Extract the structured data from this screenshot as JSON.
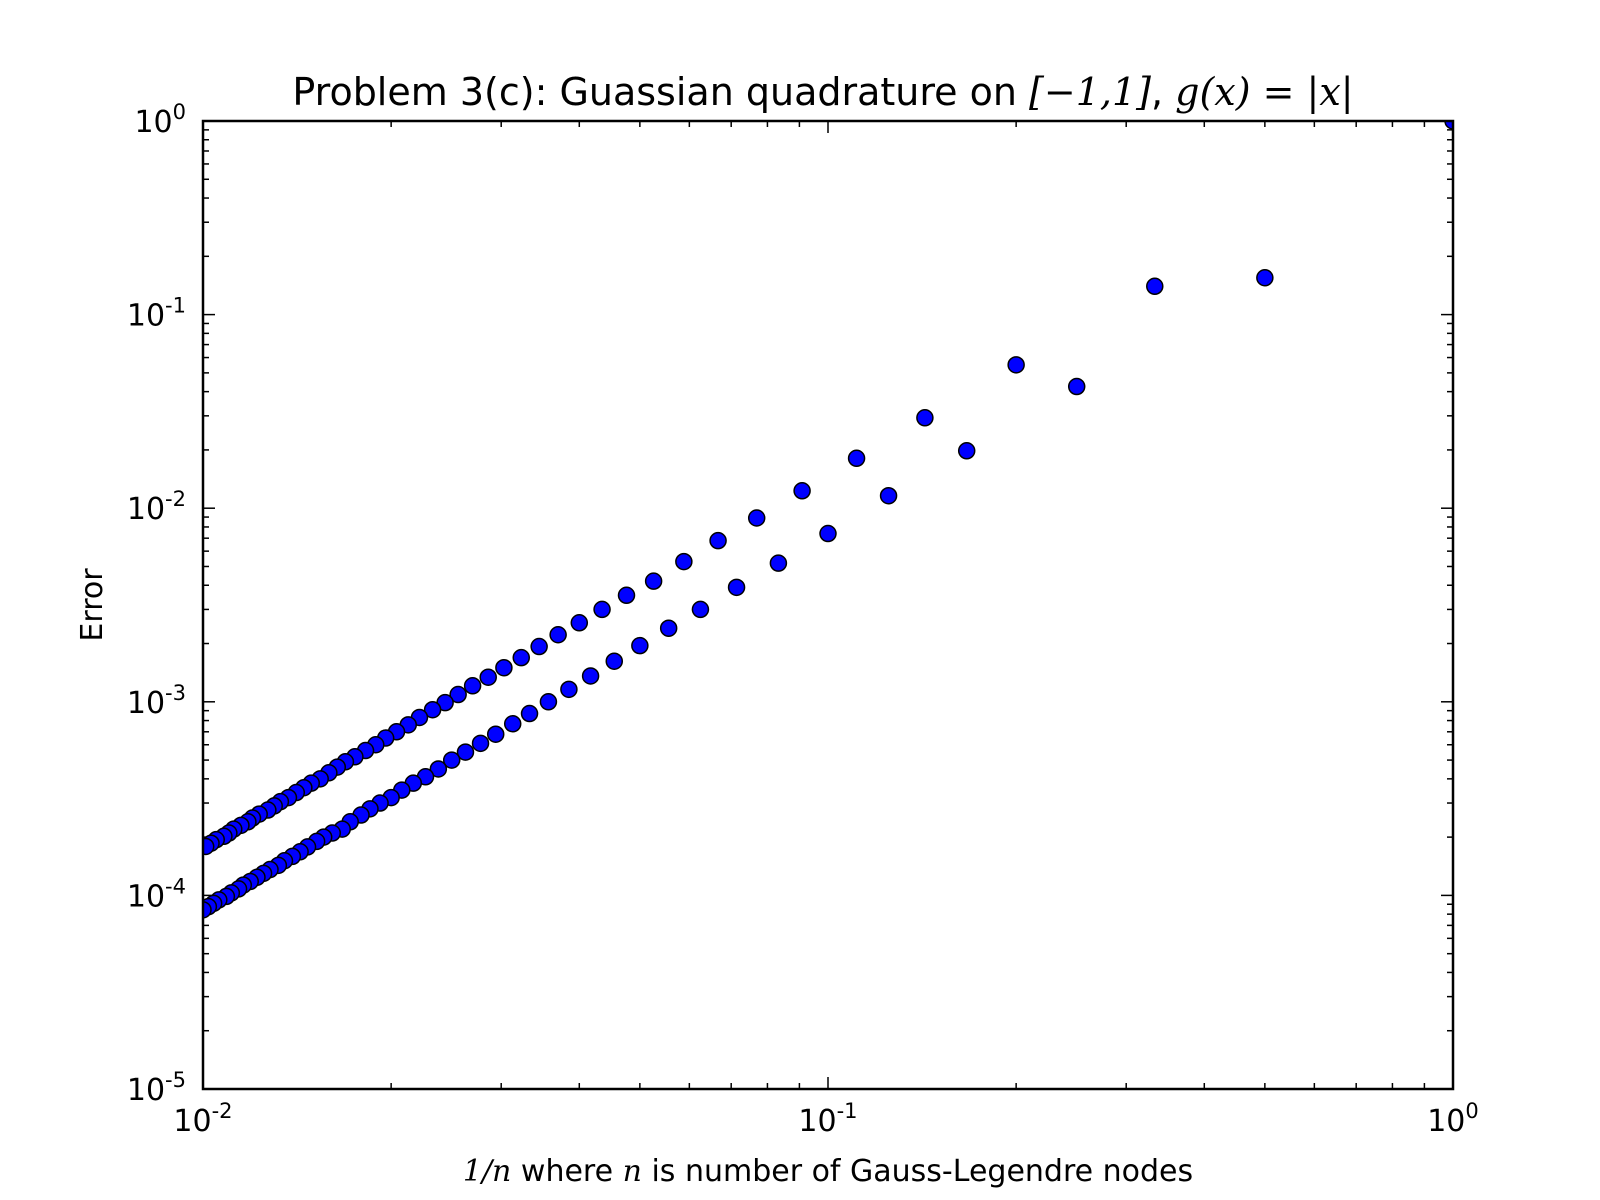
{
  "chart_data": {
    "type": "scatter",
    "title": {
      "prefix": "Problem 3(c): Guassian quadrature on ",
      "interval": "[−1,1]",
      "separator": ", ",
      "func": "g(x) = |x|"
    },
    "xlabel": {
      "math1": "1/n",
      "text1": " where ",
      "math2": "n",
      "text2": " is number of Gauss-Legendre nodes"
    },
    "ylabel": "Error",
    "xscale": "log",
    "yscale": "log",
    "xlim": [
      0.01,
      1
    ],
    "ylim": [
      1e-05,
      1
    ],
    "x_ticks": [
      {
        "base": "10",
        "exp": "-2"
      },
      {
        "base": "10",
        "exp": "-1"
      },
      {
        "base": "10",
        "exp": "0"
      }
    ],
    "y_ticks": [
      {
        "base": "10",
        "exp": "-5"
      },
      {
        "base": "10",
        "exp": "-4"
      },
      {
        "base": "10",
        "exp": "-3"
      },
      {
        "base": "10",
        "exp": "-2"
      },
      {
        "base": "10",
        "exp": "-1"
      },
      {
        "base": "10",
        "exp": "0"
      }
    ],
    "marker_color": "#0000ff",
    "marker_edge": "#000000",
    "series": [
      {
        "n": [
          1,
          2,
          3,
          4,
          5,
          6,
          7,
          8,
          9,
          10,
          11,
          12,
          13,
          14,
          15,
          16,
          17,
          18,
          19,
          20,
          21,
          22,
          23,
          24,
          25,
          26,
          27,
          28,
          29,
          30,
          31,
          32,
          33,
          34,
          35,
          36,
          37,
          38,
          39,
          40,
          41,
          42,
          43,
          44,
          45,
          46,
          47,
          48,
          49,
          50,
          51,
          52,
          53,
          54,
          55,
          56,
          57,
          58,
          59,
          60,
          61,
          62,
          63,
          64,
          65,
          66,
          67,
          68,
          69,
          70,
          71,
          72,
          73,
          74,
          75,
          76,
          77,
          78,
          79,
          80,
          81,
          82,
          83,
          84,
          85,
          86,
          87,
          88,
          89,
          90,
          91,
          92,
          93,
          94,
          95,
          96,
          97,
          98,
          99,
          100
        ],
        "x": [
          1,
          0.5,
          0.3333,
          0.25,
          0.2,
          0.1667,
          0.1429,
          0.125,
          0.1111,
          0.1,
          0.0909,
          0.0833,
          0.0769,
          0.0714,
          0.0667,
          0.0625,
          0.0588,
          0.0556,
          0.0526,
          0.05,
          0.0476,
          0.0455,
          0.0435,
          0.0417,
          0.04,
          0.0385,
          0.037,
          0.0357,
          0.0345,
          0.0333,
          0.0323,
          0.0313,
          0.0303,
          0.0294,
          0.0286,
          0.0278,
          0.027,
          0.0263,
          0.0256,
          0.025,
          0.0244,
          0.0238,
          0.0233,
          0.0227,
          0.0222,
          0.0217,
          0.0213,
          0.0208,
          0.0204,
          0.02,
          0.0196,
          0.0192,
          0.0189,
          0.0185,
          0.0182,
          0.0179,
          0.0175,
          0.0172,
          0.0169,
          0.0167,
          0.0164,
          0.0161,
          0.0159,
          0.0156,
          0.0154,
          0.0152,
          0.0149,
          0.0147,
          0.0145,
          0.0143,
          0.0141,
          0.0139,
          0.0137,
          0.0135,
          0.0133,
          0.0132,
          0.013,
          0.0128,
          0.0127,
          0.0125,
          0.0123,
          0.0122,
          0.012,
          0.0119,
          0.0118,
          0.0116,
          0.0115,
          0.0114,
          0.0112,
          0.0111,
          0.011,
          0.0109,
          0.0108,
          0.0106,
          0.0105,
          0.0104,
          0.0103,
          0.0102,
          0.0101,
          0.01
        ],
        "y": [
          1,
          0.155,
          0.14,
          0.0425,
          0.055,
          0.0198,
          0.0293,
          0.0116,
          0.0181,
          0.0074,
          0.0123,
          0.0052,
          0.0089,
          0.0039,
          0.0068,
          0.003,
          0.0053,
          0.0024,
          0.0042,
          0.00195,
          0.00355,
          0.00162,
          0.003,
          0.00136,
          0.00256,
          0.00116,
          0.00222,
          0.001,
          0.00193,
          0.00087,
          0.00169,
          0.00077,
          0.0015,
          0.00068,
          0.00134,
          0.00061,
          0.00121,
          0.00055,
          0.00109,
          0.0005,
          0.00099,
          0.00045,
          0.00091,
          0.00041,
          0.00083,
          0.00038,
          0.00076,
          0.00035,
          0.0007,
          0.00032,
          0.00065,
          0.0003,
          0.0006,
          0.00028,
          0.00056,
          0.00026,
          0.00052,
          0.00024,
          0.00049,
          0.00022,
          0.00046,
          0.00021,
          0.00043,
          0.0002,
          0.0004,
          0.00019,
          0.00038,
          0.000178,
          0.00036,
          0.000168,
          0.00034,
          0.000159,
          0.00032,
          0.000151,
          0.000305,
          0.000143,
          0.00029,
          0.000136,
          0.000276,
          0.00013,
          0.000263,
          0.000124,
          0.000251,
          0.000118,
          0.00024,
          0.000113,
          0.00023,
          0.000108,
          0.00022,
          0.000103,
          0.00021,
          9.88e-05,
          0.000202,
          9.48e-05,
          0.000194,
          9.1e-05,
          0.000186,
          8.75e-05,
          0.000179,
          8.42e-05
        ]
      }
    ]
  }
}
